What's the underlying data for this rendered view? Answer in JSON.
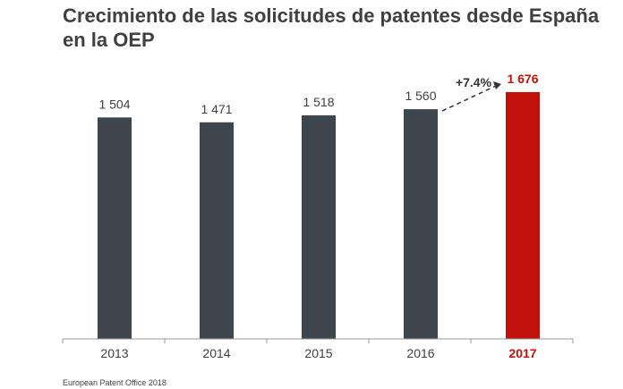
{
  "chart_data": {
    "type": "bar",
    "title": "Crecimiento de las solicitudes de patentes desde España en la OEP",
    "categories": [
      "2013",
      "2014",
      "2015",
      "2016",
      "2017"
    ],
    "values": [
      1504,
      1471,
      1518,
      1560,
      1676
    ],
    "value_labels": [
      "1 504",
      "1 471",
      "1 518",
      "1 560",
      "1 676"
    ],
    "highlight_index": 4,
    "annotation": "+7.4%",
    "ylim": [
      0,
      1676
    ],
    "xlabel": "",
    "ylabel": "",
    "grid": false,
    "colors": {
      "bar": "#3d464d",
      "highlight": "#c0120b",
      "text": "#404040"
    }
  },
  "source": "European Patent Office 2018"
}
